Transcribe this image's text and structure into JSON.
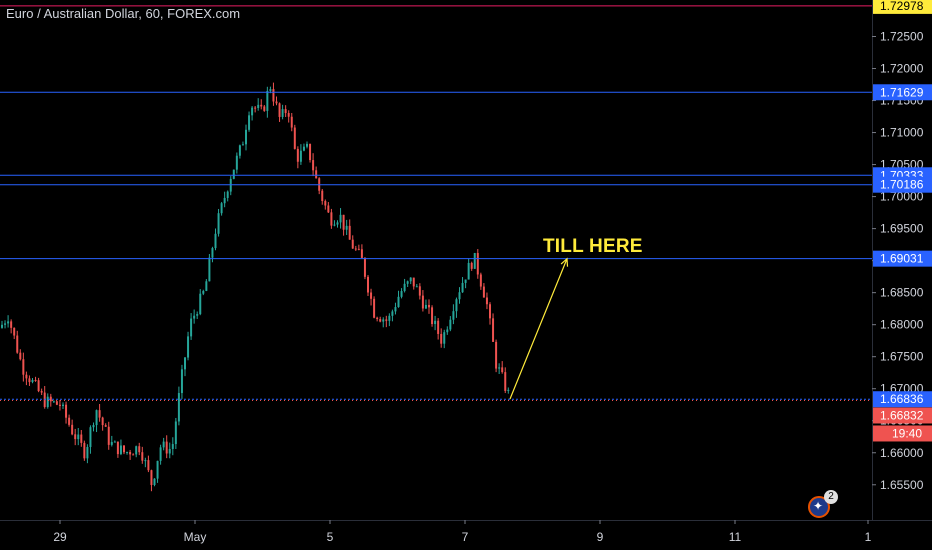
{
  "title": "Euro / Australian Dollar, 60, FOREX.com",
  "annotation": "TILL HERE",
  "clock": "19:40",
  "badge_count": "2",
  "colors": {
    "background": "#000000",
    "up": "#26a69a",
    "down": "#ef5350",
    "hline": "#2962ff",
    "magenta": "#e91e63",
    "arrow": "#ffeb3b",
    "axis_text": "#d1d4dc"
  },
  "chart_data": {
    "type": "candlestick",
    "ylim": [
      1.6495,
      1.7307
    ],
    "yticks": [
      "1.65500",
      "1.66000",
      "1.66500",
      "1.67000",
      "1.67500",
      "1.68000",
      "1.68500",
      "1.69000",
      "1.69500",
      "1.70000",
      "1.70500",
      "1.71000",
      "1.71500",
      "1.72000",
      "1.72500"
    ],
    "xticks": [
      {
        "label": "29",
        "bar": 60
      },
      {
        "label": "May",
        "bar": 195
      },
      {
        "label": "5",
        "bar": 330
      },
      {
        "label": "7",
        "bar": 465
      },
      {
        "label": "9",
        "bar": 600
      },
      {
        "label": "11",
        "bar": 735
      },
      {
        "label": "1",
        "bar": 868
      }
    ],
    "hlines": [
      {
        "label": "1.72978",
        "value": 1.72978,
        "style": "magenta"
      },
      {
        "label": "1.71629",
        "value": 1.71629,
        "style": "blue"
      },
      {
        "label": "1.70333",
        "value": 1.70333,
        "style": "blue"
      },
      {
        "label": "1.70186",
        "value": 1.70186,
        "style": "blue"
      },
      {
        "label": "1.69031",
        "value": 1.69031,
        "style": "blue"
      },
      {
        "label": "1.66836",
        "value": 1.66836,
        "style": "blue"
      },
      {
        "label": "1.66832",
        "value": 1.66832,
        "style": "red"
      }
    ],
    "path": [
      [
        0,
        1.6795
      ],
      [
        8,
        1.6815
      ],
      [
        22,
        1.6735
      ],
      [
        45,
        1.668
      ],
      [
        60,
        1.6675
      ],
      [
        72,
        1.6635
      ],
      [
        85,
        1.66
      ],
      [
        96,
        1.667
      ],
      [
        110,
        1.6615
      ],
      [
        125,
        1.66
      ],
      [
        140,
        1.661
      ],
      [
        152,
        1.655
      ],
      [
        160,
        1.661
      ],
      [
        172,
        1.6605
      ],
      [
        180,
        1.67
      ],
      [
        190,
        1.68
      ],
      [
        205,
        1.6855
      ],
      [
        215,
        1.6945
      ],
      [
        230,
        1.703
      ],
      [
        242,
        1.708
      ],
      [
        250,
        1.7145
      ],
      [
        262,
        1.713
      ],
      [
        270,
        1.7175
      ],
      [
        280,
        1.712
      ],
      [
        288,
        1.714
      ],
      [
        296,
        1.706
      ],
      [
        308,
        1.7075
      ],
      [
        318,
        1.7015
      ],
      [
        330,
        1.6965
      ],
      [
        340,
        1.697
      ],
      [
        350,
        1.693
      ],
      [
        362,
        1.69
      ],
      [
        374,
        1.682
      ],
      [
        388,
        1.6805
      ],
      [
        400,
        1.685
      ],
      [
        412,
        1.687
      ],
      [
        428,
        1.682
      ],
      [
        442,
        1.6775
      ],
      [
        455,
        1.684
      ],
      [
        466,
        1.688
      ],
      [
        474,
        1.6905
      ],
      [
        486,
        1.684
      ],
      [
        496,
        1.674
      ],
      [
        510,
        1.6685
      ]
    ],
    "arrow": {
      "from": [
        510,
        1.6684
      ],
      "to": [
        567,
        1.6903
      ]
    }
  }
}
